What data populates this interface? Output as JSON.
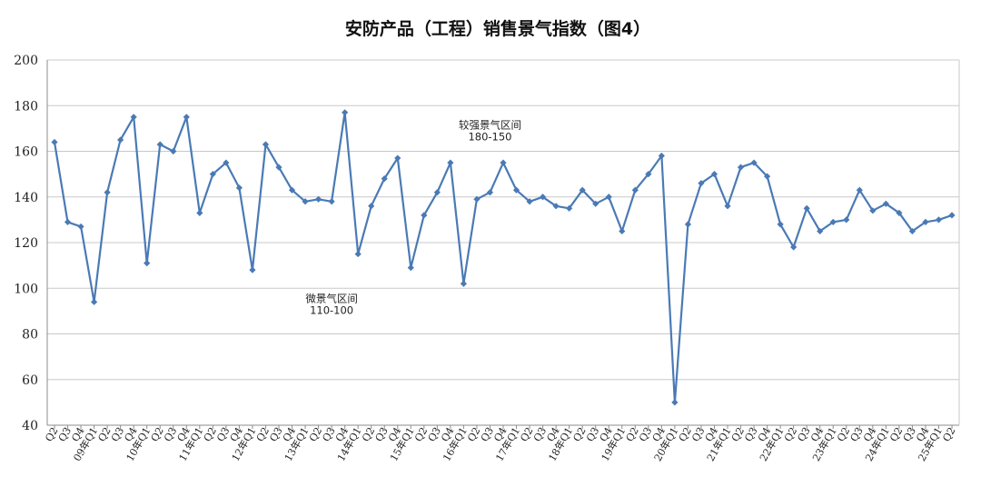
{
  "chart_data": {
    "type": "line",
    "title": "安防产品（工程）销售景气指数（图4）",
    "xlabel": "",
    "ylabel": "",
    "ylim": [
      40,
      200
    ],
    "yticks": [
      40,
      60,
      80,
      100,
      120,
      140,
      160,
      180,
      200
    ],
    "grid": true,
    "legend": "none",
    "line_color": "#4a7ab5",
    "marker_color": "#4a7ab5",
    "grid_color": "#c8c8c8",
    "categories": [
      "Q2",
      "Q3",
      "Q4",
      "09年Q1",
      "Q2",
      "Q3",
      "Q4",
      "10年Q1",
      "Q2",
      "Q3",
      "Q4",
      "11年Q1",
      "Q2",
      "Q3",
      "Q4",
      "12年Q1",
      "Q2",
      "Q3",
      "Q4",
      "13年Q1",
      "Q2",
      "Q3",
      "Q4",
      "14年Q1",
      "Q2",
      "Q3",
      "Q4",
      "15年Q1",
      "Q2",
      "Q3",
      "Q4",
      "16年Q1",
      "Q2",
      "Q3",
      "Q4",
      "17年Q1",
      "Q2",
      "Q3",
      "Q4",
      "18年Q1",
      "Q2",
      "Q3",
      "Q4",
      "19年Q1",
      "Q2",
      "Q3",
      "Q4",
      "20年Q1",
      "Q2",
      "Q3",
      "Q4",
      "21年Q1",
      "Q2",
      "Q3",
      "Q4",
      "22年Q1",
      "Q2",
      "Q3",
      "Q4",
      "23年Q1",
      "Q2",
      "Q3",
      "Q4",
      "24年Q1",
      "Q2",
      "Q3",
      "Q4",
      "25年Q1",
      "Q2"
    ],
    "series": [
      {
        "name": "",
        "values": [
          164,
          129,
          127,
          94,
          142,
          165,
          175,
          111,
          163,
          160,
          175,
          133,
          150,
          155,
          144,
          108,
          163,
          153,
          143,
          138,
          139,
          138,
          177,
          115,
          136,
          148,
          157,
          109,
          132,
          142,
          155,
          102,
          139,
          142,
          155,
          143,
          138,
          140,
          136,
          135,
          143,
          137,
          140,
          125,
          143,
          150,
          158,
          50,
          128,
          146,
          150,
          136,
          153,
          155,
          149,
          128,
          118,
          135,
          125,
          129,
          130,
          143,
          134,
          137,
          133,
          125,
          129,
          130,
          132
        ]
      }
    ],
    "annotations": [
      {
        "lines": [
          "较强景气区间",
          "180-150"
        ],
        "x_index": 33,
        "y": 170
      },
      {
        "lines": [
          "微景气区间",
          "110-100"
        ],
        "x_index": 21,
        "y": 94
      }
    ]
  }
}
